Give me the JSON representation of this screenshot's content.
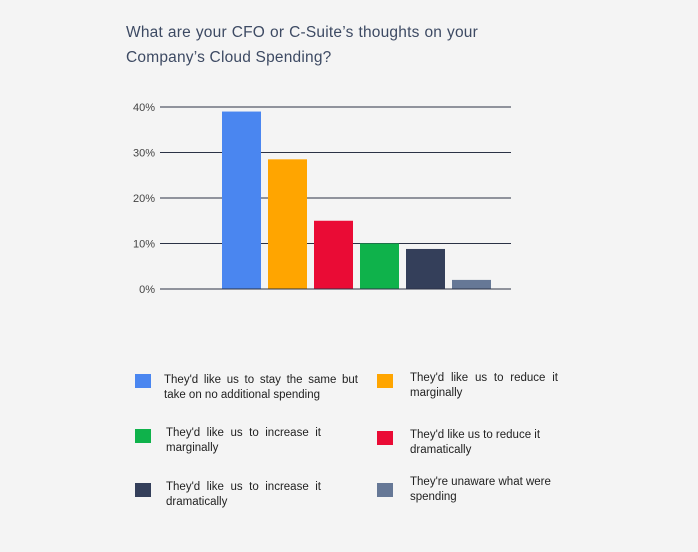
{
  "title": "What are your CFO or C-Suite’s thoughts on your Company’s Cloud Spending?",
  "chart_data": {
    "type": "bar",
    "title": "What are your CFO or C-Suite’s thoughts on your Company’s Cloud Spending?",
    "xlabel": "",
    "ylabel": "",
    "ylim": [
      0,
      40
    ],
    "yticks": [
      "0%",
      "10%",
      "20%",
      "30%",
      "40%"
    ],
    "grid": true,
    "legend_position": "bottom",
    "categories": [
      "They'd like us to stay the same but take on no additional spending",
      "They'd like us to reduce it marginally",
      "They'd like us to reduce it dramatically",
      "They'd like us to increase it marginally",
      "They'd like us to increase it dramatically",
      "They're unaware what were spending"
    ],
    "values": [
      39,
      28.5,
      15,
      10,
      8.8,
      2
    ],
    "colors": [
      "#4a86f0",
      "#ffa500",
      "#ea0b35",
      "#0fb24b",
      "#343f5a",
      "#667896"
    ]
  },
  "legend": [
    {
      "label": "They'd like us to stay the same but take on no additional spending",
      "color": "#4a86f0"
    },
    {
      "label": "They'd like us to reduce it marginally",
      "color": "#ffa500"
    },
    {
      "label": "They'd like us to increase it marginally",
      "color": "#0fb24b"
    },
    {
      "label": "They'd like us to reduce it dramatically",
      "color": "#ea0b35"
    },
    {
      "label": "They'd like us to increase it dramatically",
      "color": "#343f5a"
    },
    {
      "label": "They're unaware what were spending",
      "color": "#667896"
    }
  ]
}
